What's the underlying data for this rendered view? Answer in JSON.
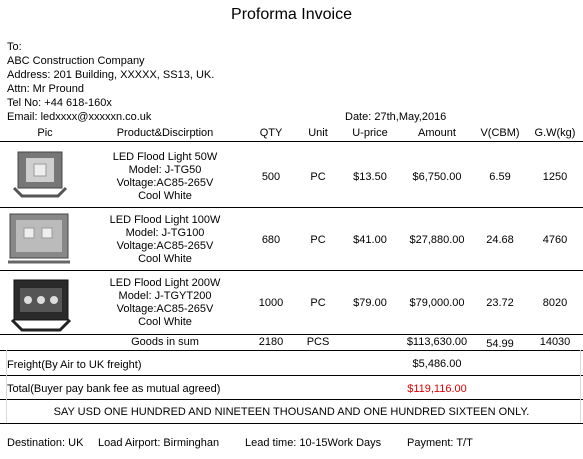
{
  "title": "Proforma  Invoice",
  "recipient": [
    "To:",
    "ABC Construction Company",
    "Address: 201 Building, XXXXX, SS13, UK.",
    "Attn: Mr Pround",
    "Tel No: +44 618-160x",
    "Email:  ledxxxx@xxxxxn.co.uk"
  ],
  "date": "Date: 27th,May,2016",
  "table": {
    "header": [
      "Pic",
      "Product&Discirption",
      "QTY",
      "Unit",
      "U-price",
      "Amount",
      "V(CBM)",
      "G.W(kg)"
    ],
    "rows": [
      {
        "product": [
          "LED Flood Light 50W",
          "Model: J-TG50",
          "Voltage:AC85-265V",
          "Cool White"
        ],
        "qty": "500",
        "unit": "PC",
        "price": "$13.50",
        "amount": "$6,750.00",
        "cbm": "6.59",
        "gw": "1250"
      },
      {
        "product": [
          "LED Flood Light 100W",
          "Model: J-TG100",
          "Voltage:AC85-265V",
          "Cool White"
        ],
        "qty": "680",
        "unit": "PC",
        "price": "$41.00",
        "amount": "$27,880.00",
        "cbm": "24.68",
        "gw": "4760"
      },
      {
        "product": [
          "LED Flood Light 200W",
          "Model: J-TGYT200",
          "Voltage:AC85-265V",
          "Cool White"
        ],
        "qty": "1000",
        "unit": "PC",
        "price": "$79.00",
        "amount": "$79,000.00",
        "cbm": "23.72",
        "gw": "8020"
      }
    ],
    "sum": {
      "label": "Goods in sum",
      "qty": "2180",
      "unit": "PCS",
      "amount": "$113,630.00",
      "cbm": "54.99",
      "gw": "14030"
    }
  },
  "freight": {
    "label": "Freight(By Air to UK freight)",
    "value": "$5,486.00"
  },
  "total": {
    "label": "Total(Buyer pay bank fee as mutual agreed)",
    "value": "$119,116.00"
  },
  "say": "SAY USD ONE HUNDRED AND NINETEEN THOUSAND AND ONE HUNDRED SIXTEEN ONLY.",
  "footer": [
    "Destination: UK",
    "Load Airport: Birminghan",
    "Lead time: 10-15Work Days",
    "Payment: T/T"
  ]
}
